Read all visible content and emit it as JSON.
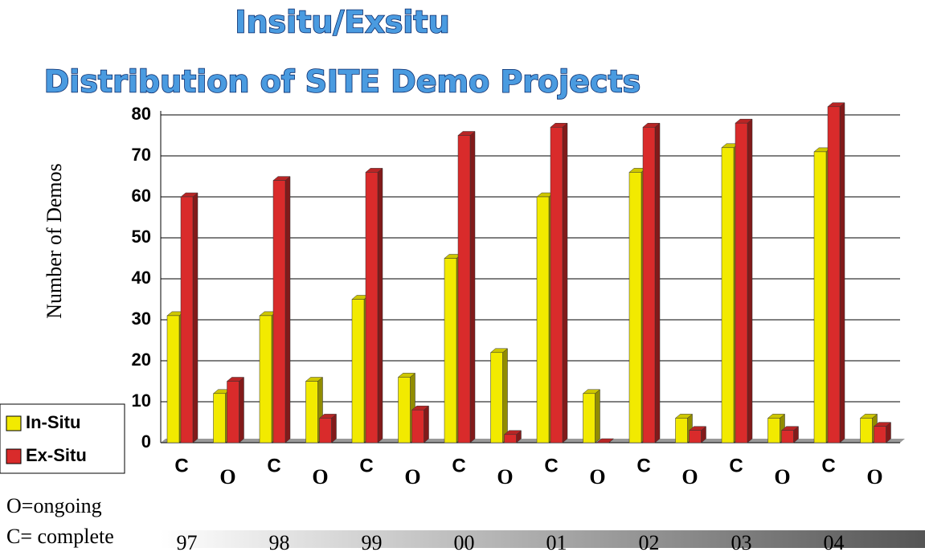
{
  "chart_data": {
    "type": "bar3d",
    "title": "Insitu/Exsitu",
    "subtitle": "Distribution of SITE Demo Projects",
    "y_label": "Number of Demos",
    "categories": [
      "C",
      "O",
      "C",
      "O",
      "C",
      "O",
      "C",
      "O",
      "C",
      "O",
      "C",
      "O",
      "C",
      "O",
      "C",
      "O"
    ],
    "groups": [
      "97",
      "98",
      "99",
      "00",
      "01",
      "02",
      "03",
      "04"
    ],
    "notes": [
      "O=ongoing",
      "C= complete"
    ],
    "series": [
      {
        "name": "In-Situ",
        "color": "#f2ea00",
        "values": [
          31,
          12,
          31,
          15,
          35,
          16,
          45,
          22,
          60,
          12,
          66,
          6,
          72,
          6,
          71,
          6
        ]
      },
      {
        "name": "Ex-Situ",
        "color": "#d92b2b",
        "values": [
          60,
          15,
          64,
          6,
          66,
          8,
          75,
          2,
          77,
          0,
          77,
          3,
          78,
          3,
          82,
          4
        ]
      }
    ],
    "ylim": [
      0,
      80
    ],
    "yticks": [
      0,
      10,
      20,
      30,
      40,
      50,
      60,
      70,
      80
    ],
    "grid": true,
    "legend": "lower left"
  }
}
